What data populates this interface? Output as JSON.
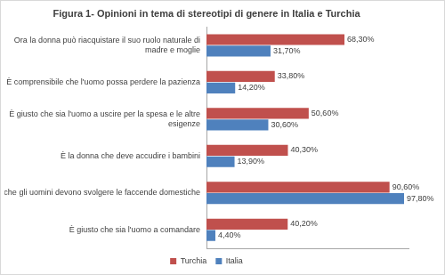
{
  "chart_data": {
    "type": "bar",
    "orientation": "horizontal",
    "title": "Figura 1- Opinioni in tema di stereotipi di genere in Italia e Turchia",
    "categories": [
      "Ora la donna può riacquistare il suo ruolo naturale di madre e moglie",
      "È comprensibile che l'uomo possa perdere la pazienza",
      "È giusto che sia l'uomo a uscire per la spesa e le altre esigenze",
      "È la donna che deve accudire i bambini",
      "Anche gli uomini devono svolgere le faccende domestiche",
      "È giusto che sia l'uomo a comandare"
    ],
    "series": [
      {
        "name": "Turchia",
        "color": "#c0504d",
        "values": [
          68.3,
          33.8,
          50.6,
          40.3,
          90.6,
          40.2
        ],
        "value_labels": [
          "68,30%",
          "33,80%",
          "50,60%",
          "40,30%",
          "90,60%",
          "40,20%"
        ]
      },
      {
        "name": "Italia",
        "color": "#4f81bd",
        "values": [
          31.7,
          14.2,
          30.6,
          13.9,
          97.8,
          4.4
        ],
        "value_labels": [
          "31,70%",
          "14,20%",
          "30,60%",
          "13,90%",
          "97,80%",
          "4,40%"
        ]
      }
    ],
    "xlim": [
      0,
      100
    ],
    "grid": false,
    "legend": "bottom",
    "data_labels": true,
    "tick_labels": "y"
  }
}
